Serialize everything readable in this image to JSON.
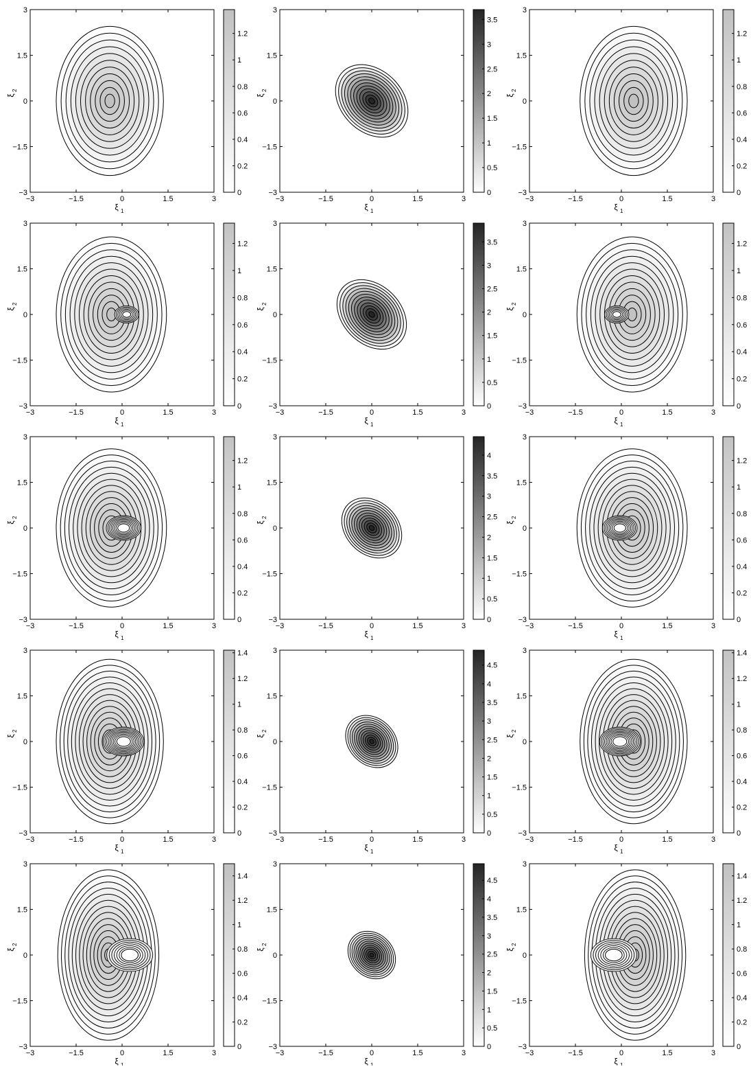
{
  "figure": {
    "rows": 5,
    "cols": 3,
    "axis_ticks": [
      "−3",
      "−1.5",
      "0",
      "1.5",
      "3"
    ],
    "xlabel_main": "ξ",
    "xlabel_sub": "1",
    "ylabel_main": "ξ",
    "ylabel_sub": "2",
    "grayscale_low": "#ffffff",
    "grayscale_high": "#1a1a1a",
    "contour_color": "#000000"
  },
  "chart_data": [
    {
      "type": "contour",
      "row": 1,
      "col": 1,
      "xlim": [
        -3,
        3
      ],
      "ylim": [
        -3,
        3
      ],
      "shape": "ellipse",
      "center": [
        -0.4,
        0
      ],
      "radii": [
        1.75,
        2.45
      ],
      "levels": 11,
      "dip": 0,
      "fill_peak": 0.27,
      "colorbar_max": 1.38,
      "colorbar_ticks": [
        "0",
        "0.2",
        "0.4",
        "0.6",
        "0.8",
        "1",
        "1.2"
      ]
    },
    {
      "type": "contour",
      "row": 1,
      "col": 2,
      "xlim": [
        -3,
        3
      ],
      "ylim": [
        -3,
        3
      ],
      "shape": "tilted-ellipse",
      "center": [
        0,
        0
      ],
      "radii": [
        1.0,
        1.35
      ],
      "tilt_deg": 45,
      "levels": 12,
      "dip": 0,
      "fill_peak": 0.95,
      "colorbar_max": 3.7,
      "colorbar_ticks": [
        "0",
        "0.5",
        "1",
        "1.5",
        "2",
        "2.5",
        "3",
        "3.5"
      ]
    },
    {
      "type": "contour",
      "row": 1,
      "col": 3,
      "xlim": [
        -3,
        3
      ],
      "ylim": [
        -3,
        3
      ],
      "shape": "ellipse",
      "center": [
        0.4,
        0
      ],
      "radii": [
        1.75,
        2.45
      ],
      "levels": 11,
      "dip": 0,
      "fill_peak": 0.27,
      "colorbar_max": 1.38,
      "colorbar_ticks": [
        "0",
        "0.2",
        "0.4",
        "0.6",
        "0.8",
        "1",
        "1.2"
      ]
    },
    {
      "type": "contour",
      "row": 2,
      "col": 1,
      "xlim": [
        -3,
        3
      ],
      "ylim": [
        -3,
        3
      ],
      "shape": "ellipse-with-dip",
      "center": [
        -0.35,
        0
      ],
      "radii": [
        1.8,
        2.55
      ],
      "levels": 12,
      "dip": 0.45,
      "dip_at": [
        0.15,
        0
      ],
      "fill_peak": 0.26,
      "colorbar_max": 1.35,
      "colorbar_ticks": [
        "0",
        "0.2",
        "0.4",
        "0.6",
        "0.8",
        "1",
        "1.2"
      ]
    },
    {
      "type": "contour",
      "row": 2,
      "col": 2,
      "xlim": [
        -3,
        3
      ],
      "ylim": [
        -3,
        3
      ],
      "shape": "tilted-ellipse",
      "center": [
        0,
        0
      ],
      "radii": [
        0.95,
        1.3
      ],
      "tilt_deg": 45,
      "levels": 12,
      "dip": 0,
      "fill_peak": 0.95,
      "colorbar_max": 3.9,
      "colorbar_ticks": [
        "0",
        "0.5",
        "1",
        "1.5",
        "2",
        "2.5",
        "3",
        "3.5"
      ]
    },
    {
      "type": "contour",
      "row": 2,
      "col": 3,
      "xlim": [
        -3,
        3
      ],
      "ylim": [
        -3,
        3
      ],
      "shape": "ellipse-with-dip",
      "center": [
        0.35,
        0
      ],
      "radii": [
        1.8,
        2.55
      ],
      "levels": 12,
      "dip": 0.45,
      "dip_at": [
        -0.15,
        0
      ],
      "fill_peak": 0.26,
      "colorbar_max": 1.35,
      "colorbar_ticks": [
        "0",
        "0.2",
        "0.4",
        "0.6",
        "0.8",
        "1",
        "1.2"
      ]
    },
    {
      "type": "contour",
      "row": 3,
      "col": 1,
      "xlim": [
        -3,
        3
      ],
      "ylim": [
        -3,
        3
      ],
      "shape": "ellipse-with-dip",
      "center": [
        -0.35,
        0
      ],
      "radii": [
        1.8,
        2.6
      ],
      "levels": 13,
      "dip": 0.8,
      "dip_at": [
        0.05,
        0
      ],
      "fill_peak": 0.26,
      "colorbar_max": 1.38,
      "colorbar_ticks": [
        "0",
        "0.2",
        "0.4",
        "0.6",
        "0.8",
        "1",
        "1.2"
      ]
    },
    {
      "type": "contour",
      "row": 3,
      "col": 2,
      "xlim": [
        -3,
        3
      ],
      "ylim": [
        -3,
        3
      ],
      "shape": "tilted-ellipse",
      "center": [
        0,
        0
      ],
      "radii": [
        0.85,
        1.1
      ],
      "tilt_deg": 45,
      "levels": 12,
      "dip": 0,
      "fill_peak": 0.95,
      "colorbar_max": 4.45,
      "colorbar_ticks": [
        "0",
        "0.5",
        "1",
        "1.5",
        "2",
        "2.5",
        "3",
        "3.5",
        "4"
      ]
    },
    {
      "type": "contour",
      "row": 3,
      "col": 3,
      "xlim": [
        -3,
        3
      ],
      "ylim": [
        -3,
        3
      ],
      "shape": "ellipse-with-dip",
      "center": [
        0.35,
        0
      ],
      "radii": [
        1.8,
        2.6
      ],
      "levels": 13,
      "dip": 0.8,
      "dip_at": [
        -0.05,
        0
      ],
      "fill_peak": 0.26,
      "colorbar_max": 1.38,
      "colorbar_ticks": [
        "0",
        "0.2",
        "0.4",
        "0.6",
        "0.8",
        "1",
        "1.2"
      ]
    },
    {
      "type": "contour",
      "row": 4,
      "col": 1,
      "xlim": [
        -3,
        3
      ],
      "ylim": [
        -3,
        3
      ],
      "shape": "ellipse-with-dip",
      "center": [
        -0.4,
        0
      ],
      "radii": [
        1.75,
        2.7
      ],
      "levels": 14,
      "dip": 1.0,
      "dip_at": [
        0.05,
        0
      ],
      "fill_peak": 0.26,
      "colorbar_max": 1.42,
      "colorbar_ticks": [
        "0",
        "0.2",
        "0.4",
        "0.6",
        "0.8",
        "1",
        "1.2",
        "1.4"
      ]
    },
    {
      "type": "contour",
      "row": 4,
      "col": 2,
      "xlim": [
        -3,
        3
      ],
      "ylim": [
        -3,
        3
      ],
      "shape": "tilted-ellipse",
      "center": [
        0,
        0
      ],
      "radii": [
        0.75,
        0.95
      ],
      "tilt_deg": 45,
      "levels": 12,
      "dip": 0,
      "fill_peak": 0.95,
      "colorbar_max": 4.9,
      "colorbar_ticks": [
        "0",
        "0.5",
        "1",
        "1.5",
        "2",
        "2.5",
        "3",
        "3.5",
        "4",
        "4.5"
      ]
    },
    {
      "type": "contour",
      "row": 4,
      "col": 3,
      "xlim": [
        -3,
        3
      ],
      "ylim": [
        -3,
        3
      ],
      "shape": "ellipse-with-dip",
      "center": [
        0.4,
        0
      ],
      "radii": [
        1.75,
        2.7
      ],
      "levels": 14,
      "dip": 1.0,
      "dip_at": [
        -0.05,
        0
      ],
      "fill_peak": 0.26,
      "colorbar_max": 1.42,
      "colorbar_ticks": [
        "0",
        "0.2",
        "0.4",
        "0.6",
        "0.8",
        "1",
        "1.2",
        "1.4"
      ]
    },
    {
      "type": "contour",
      "row": 5,
      "col": 1,
      "xlim": [
        -3,
        3
      ],
      "ylim": [
        -3,
        3
      ],
      "shape": "crescent",
      "center": [
        -0.45,
        0
      ],
      "radii": [
        1.65,
        2.8
      ],
      "levels": 14,
      "dip": 1.0,
      "dip_at": [
        0.25,
        0
      ],
      "fill_peak": 0.27,
      "colorbar_max": 1.5,
      "colorbar_ticks": [
        "0",
        "0.2",
        "0.4",
        "0.6",
        "0.8",
        "1",
        "1.2",
        "1.4"
      ]
    },
    {
      "type": "contour",
      "row": 5,
      "col": 2,
      "xlim": [
        -3,
        3
      ],
      "ylim": [
        -3,
        3
      ],
      "shape": "tilted-ellipse",
      "center": [
        0,
        0
      ],
      "radii": [
        0.7,
        0.85
      ],
      "tilt_deg": 45,
      "levels": 12,
      "dip": 0,
      "fill_peak": 0.95,
      "colorbar_max": 4.95,
      "colorbar_ticks": [
        "0",
        "0.5",
        "1",
        "1.5",
        "2",
        "2.5",
        "3",
        "3.5",
        "4",
        "4.5"
      ]
    },
    {
      "type": "contour",
      "row": 5,
      "col": 3,
      "xlim": [
        -3,
        3
      ],
      "ylim": [
        -3,
        3
      ],
      "shape": "crescent",
      "center": [
        0.45,
        0
      ],
      "radii": [
        1.65,
        2.8
      ],
      "levels": 14,
      "dip": 1.0,
      "dip_at": [
        -0.25,
        0
      ],
      "fill_peak": 0.27,
      "colorbar_max": 1.5,
      "colorbar_ticks": [
        "0",
        "0.2",
        "0.4",
        "0.6",
        "0.8",
        "1",
        "1.2",
        "1.4"
      ]
    }
  ]
}
